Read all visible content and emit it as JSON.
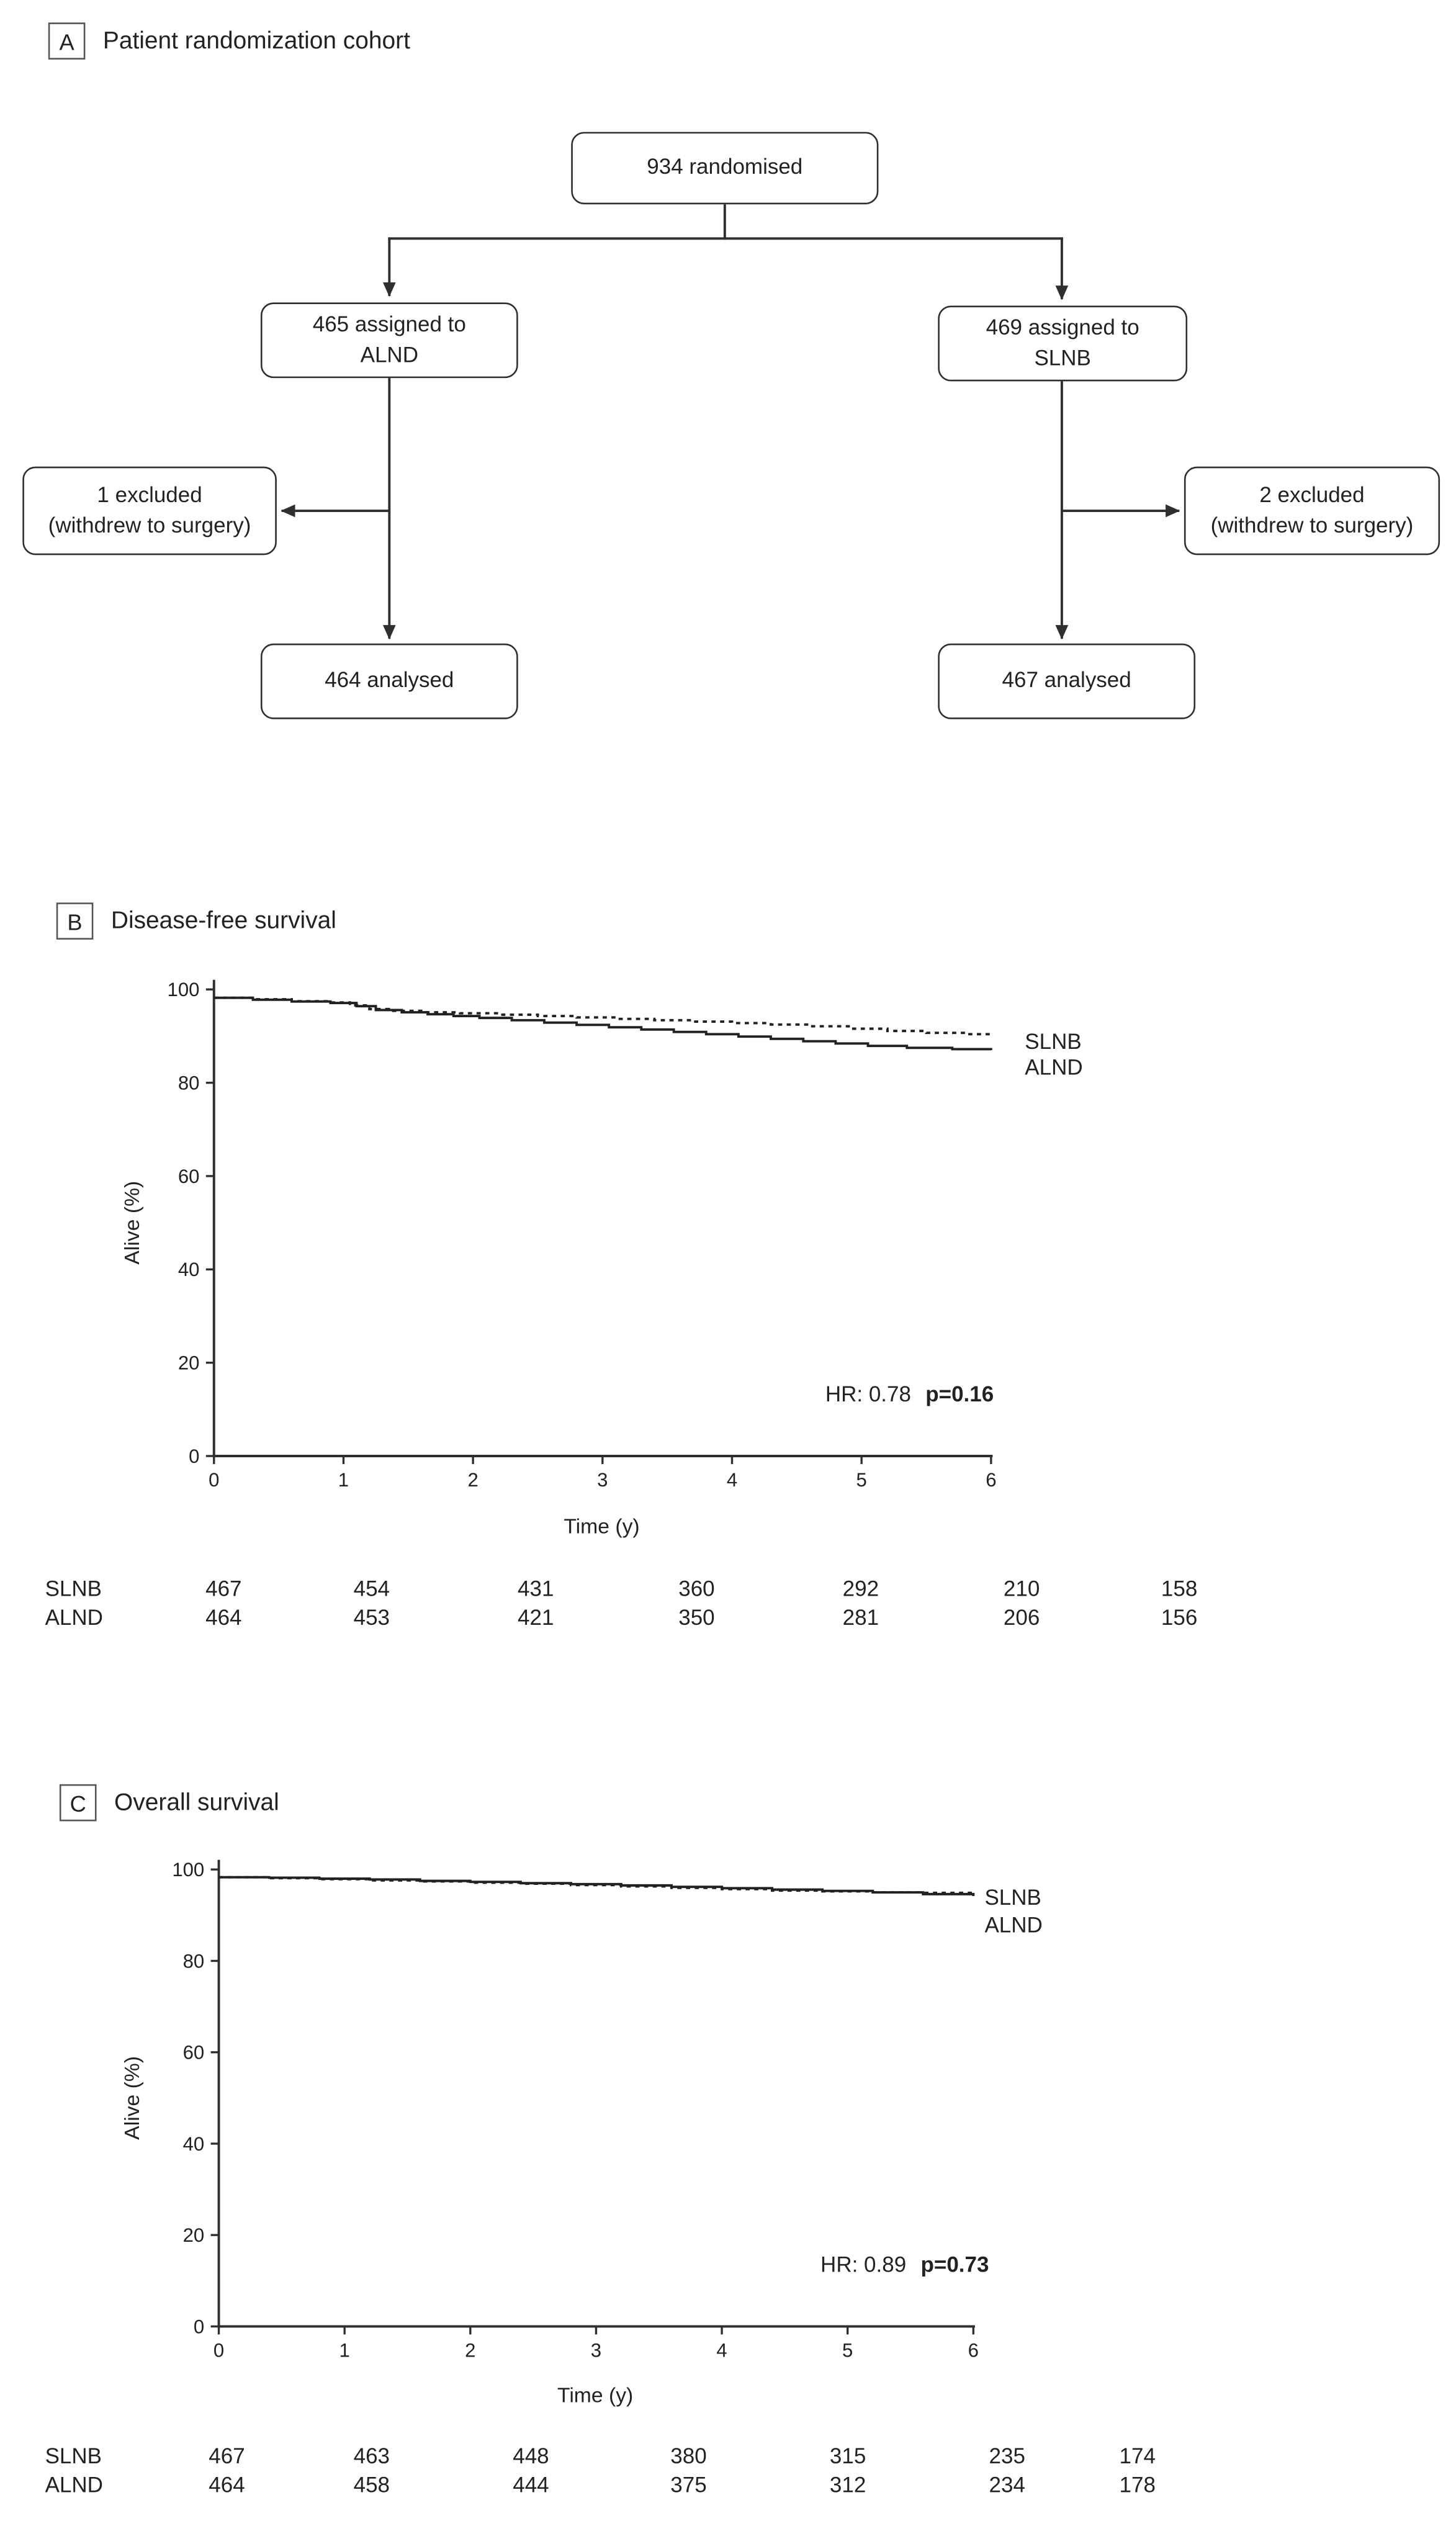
{
  "panelA": {
    "label": "A",
    "title": "Patient randomization cohort",
    "boxes": {
      "randomised": "934 randomised",
      "alnd_assigned": [
        "465 assigned to",
        "ALND"
      ],
      "slnb_assigned": [
        "469 assigned to",
        "SLNB"
      ],
      "alnd_excluded": [
        "1 excluded",
        "(withdrew to surgery)"
      ],
      "slnb_excluded": [
        "2 excluded",
        "(withdrew to surgery)"
      ],
      "alnd_analysed": "464 analysed",
      "slnb_analysed": "467 analysed"
    }
  },
  "panelB": {
    "label": "B"
  },
  "panelC": {
    "label": "C"
  },
  "chart_data": [
    {
      "type": "line",
      "subtype": "kaplan-meier-step",
      "title": "Disease-free survival",
      "xlabel": "Time (y)",
      "ylabel": "Alive (%)",
      "xlim": [
        0,
        6
      ],
      "ylim": [
        0,
        100
      ],
      "x_ticks": [
        0,
        1,
        2,
        3,
        4,
        5,
        6
      ],
      "y_ticks": [
        0,
        20,
        40,
        60,
        80,
        100
      ],
      "grid": false,
      "legend_position": "right of curve ends",
      "annotation": {
        "hr": "HR: 0.78",
        "p": "p=0.16"
      },
      "series": [
        {
          "name": "SLNB",
          "line_style": "dotted",
          "points": [
            [
              0,
              98.2
            ],
            [
              0.3,
              97.9
            ],
            [
              0.6,
              97.5
            ],
            [
              0.9,
              97.2
            ],
            [
              1.05,
              96.6
            ],
            [
              1.2,
              95.8
            ],
            [
              1.35,
              95.4
            ],
            [
              1.6,
              95.1
            ],
            [
              1.9,
              94.9
            ],
            [
              2.2,
              94.6
            ],
            [
              2.5,
              94.3
            ],
            [
              2.8,
              94.0
            ],
            [
              3.1,
              93.7
            ],
            [
              3.4,
              93.4
            ],
            [
              3.7,
              93.1
            ],
            [
              4.0,
              92.8
            ],
            [
              4.3,
              92.5
            ],
            [
              4.6,
              92.1
            ],
            [
              4.9,
              91.6
            ],
            [
              5.2,
              91.1
            ],
            [
              5.5,
              90.7
            ],
            [
              5.8,
              90.4
            ],
            [
              6.0,
              90.2
            ]
          ]
        },
        {
          "name": "ALND",
          "line_style": "solid",
          "points": [
            [
              0,
              98.2
            ],
            [
              0.3,
              97.8
            ],
            [
              0.6,
              97.4
            ],
            [
              0.9,
              97.1
            ],
            [
              1.1,
              96.4
            ],
            [
              1.25,
              95.6
            ],
            [
              1.45,
              95.1
            ],
            [
              1.65,
              94.7
            ],
            [
              1.85,
              94.3
            ],
            [
              2.05,
              93.9
            ],
            [
              2.3,
              93.4
            ],
            [
              2.55,
              92.9
            ],
            [
              2.8,
              92.4
            ],
            [
              3.05,
              91.9
            ],
            [
              3.3,
              91.4
            ],
            [
              3.55,
              90.9
            ],
            [
              3.8,
              90.4
            ],
            [
              4.05,
              89.9
            ],
            [
              4.3,
              89.4
            ],
            [
              4.55,
              88.9
            ],
            [
              4.8,
              88.4
            ],
            [
              5.05,
              87.9
            ],
            [
              5.35,
              87.5
            ],
            [
              5.7,
              87.2
            ],
            [
              6.0,
              87.0
            ]
          ]
        }
      ],
      "risk_table": {
        "rows": [
          {
            "name": "SLNB",
            "values": [
              467,
              454,
              431,
              360,
              292,
              210,
              158
            ]
          },
          {
            "name": "ALND",
            "values": [
              464,
              453,
              421,
              350,
              281,
              206,
              156
            ]
          }
        ]
      }
    },
    {
      "type": "line",
      "subtype": "kaplan-meier-step",
      "title": "Overall survival",
      "xlabel": "Time (y)",
      "ylabel": "Alive (%)",
      "xlim": [
        0,
        6
      ],
      "ylim": [
        0,
        100
      ],
      "x_ticks": [
        0,
        1,
        2,
        3,
        4,
        5,
        6
      ],
      "y_ticks": [
        0,
        20,
        40,
        60,
        80,
        100
      ],
      "grid": false,
      "legend_position": "right of curve ends",
      "annotation": {
        "hr": "HR: 0.89",
        "p": "p=0.73"
      },
      "series": [
        {
          "name": "SLNB",
          "line_style": "dotted",
          "points": [
            [
              0,
              98.3
            ],
            [
              0.4,
              98.1
            ],
            [
              0.8,
              97.9
            ],
            [
              1.2,
              97.6
            ],
            [
              1.6,
              97.4
            ],
            [
              2.0,
              97.1
            ],
            [
              2.4,
              96.9
            ],
            [
              2.8,
              96.6
            ],
            [
              3.2,
              96.3
            ],
            [
              3.6,
              96.0
            ],
            [
              4.0,
              95.7
            ],
            [
              4.4,
              95.4
            ],
            [
              4.8,
              95.2
            ],
            [
              5.2,
              95.0
            ],
            [
              5.6,
              94.9
            ],
            [
              6.0,
              94.8
            ]
          ]
        },
        {
          "name": "ALND",
          "line_style": "solid",
          "points": [
            [
              0,
              98.3
            ],
            [
              0.4,
              98.2
            ],
            [
              0.8,
              98.0
            ],
            [
              1.2,
              97.8
            ],
            [
              1.6,
              97.5
            ],
            [
              2.0,
              97.3
            ],
            [
              2.4,
              97.0
            ],
            [
              2.8,
              96.8
            ],
            [
              3.2,
              96.5
            ],
            [
              3.6,
              96.2
            ],
            [
              4.0,
              95.9
            ],
            [
              4.4,
              95.6
            ],
            [
              4.8,
              95.3
            ],
            [
              5.2,
              95.0
            ],
            [
              5.6,
              94.6
            ],
            [
              6.0,
              94.2
            ]
          ]
        }
      ],
      "risk_table": {
        "rows": [
          {
            "name": "SLNB",
            "values": [
              467,
              463,
              448,
              380,
              315,
              235,
              174
            ]
          },
          {
            "name": "ALND",
            "values": [
              464,
              458,
              444,
              375,
              312,
              234,
              178
            ]
          }
        ]
      }
    }
  ]
}
